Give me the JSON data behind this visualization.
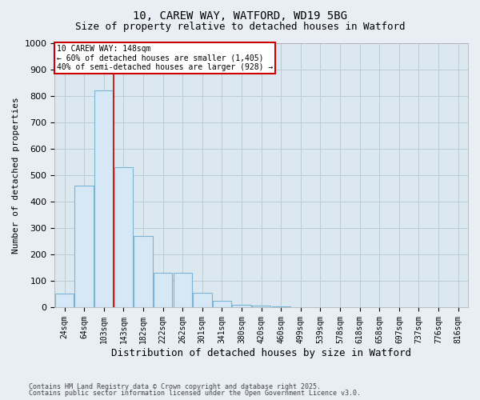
{
  "title1": "10, CAREW WAY, WATFORD, WD19 5BG",
  "title2": "Size of property relative to detached houses in Watford",
  "xlabel": "Distribution of detached houses by size in Watford",
  "ylabel": "Number of detached properties",
  "categories": [
    "24sqm",
    "64sqm",
    "103sqm",
    "143sqm",
    "182sqm",
    "222sqm",
    "262sqm",
    "301sqm",
    "341sqm",
    "380sqm",
    "420sqm",
    "460sqm",
    "499sqm",
    "539sqm",
    "578sqm",
    "618sqm",
    "658sqm",
    "697sqm",
    "737sqm",
    "776sqm",
    "816sqm"
  ],
  "values": [
    50,
    460,
    820,
    530,
    270,
    130,
    130,
    55,
    25,
    10,
    5,
    2,
    0,
    0,
    0,
    0,
    0,
    0,
    0,
    0,
    0
  ],
  "bar_color": "#d6e8f5",
  "bar_edge_color": "#7ab3d4",
  "vline_x": 2.5,
  "vline_color": "#cc0000",
  "annotation_title": "10 CAREW WAY: 148sqm",
  "annotation_line1": "← 60% of detached houses are smaller (1,405)",
  "annotation_line2": "40% of semi-detached houses are larger (928) →",
  "ylim": [
    0,
    1000
  ],
  "yticks": [
    0,
    100,
    200,
    300,
    400,
    500,
    600,
    700,
    800,
    900,
    1000
  ],
  "footnote1": "Contains HM Land Registry data © Crown copyright and database right 2025.",
  "footnote2": "Contains public sector information licensed under the Open Government Licence v3.0.",
  "bg_color": "#e8eef4",
  "plot_bg_color": "#dce8f0",
  "grid_color": "#b8ccd8",
  "annotation_box_edgecolor": "#cc0000",
  "title_fontsize": 10,
  "subtitle_fontsize": 9,
  "tick_fontsize": 7,
  "ylabel_fontsize": 8,
  "xlabel_fontsize": 9
}
